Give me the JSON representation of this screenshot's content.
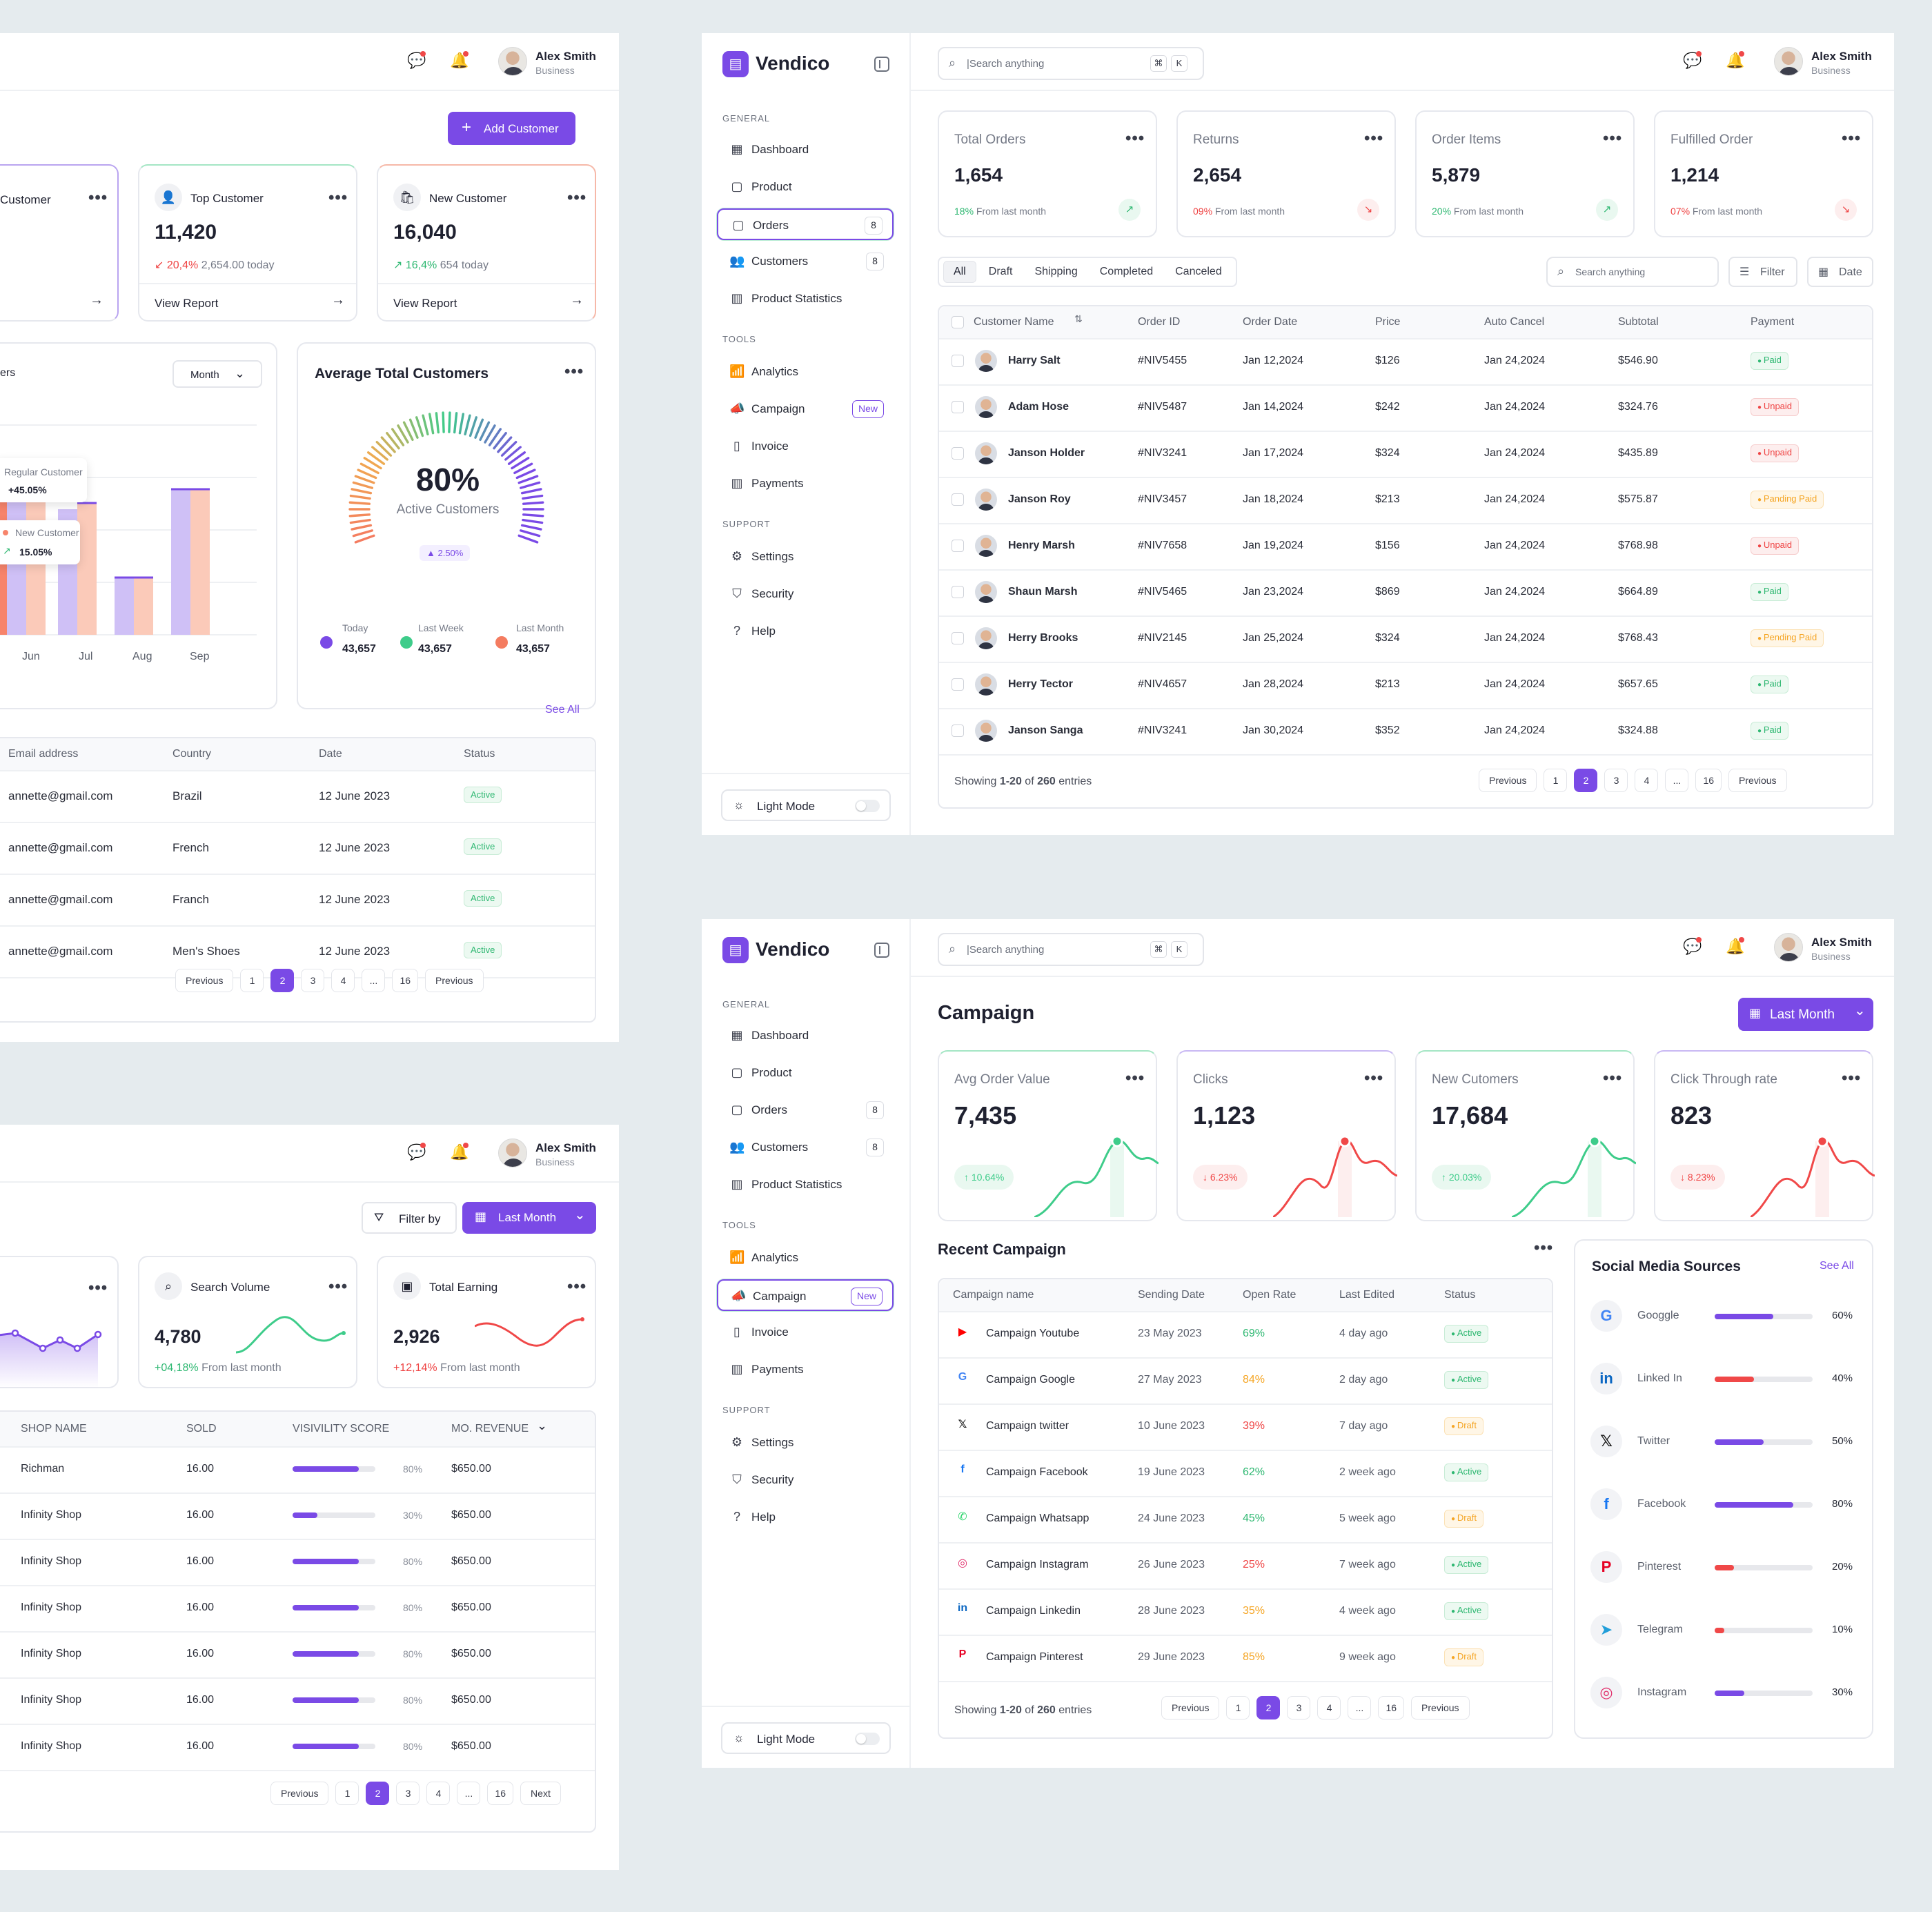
{
  "user": {
    "name": "Alex Smith",
    "role": "Business"
  },
  "brand": "Vendico",
  "search_placeholder": "|Search anything",
  "kbd": [
    "⌘",
    "K"
  ],
  "sidebar": {
    "general": "GENERAL",
    "tools": "TOOLS",
    "support": "SUPPORT",
    "dashboard": "Dashboard",
    "product": "Product",
    "orders": "Orders",
    "orders_count": "8",
    "customers": "Customers",
    "customers_count": "8",
    "product_statistics": "Product Statistics",
    "analytics": "Analytics",
    "campaign": "Campaign",
    "new_badge": "New",
    "invoice": "Invoice",
    "payments": "Payments",
    "settings": "Settings",
    "security": "Security",
    "help": "Help",
    "light_mode": "Light Mode"
  },
  "customers_panel": {
    "add_button": "Add Customer",
    "cards": [
      {
        "title": "Customer"
      },
      {
        "title": "Top Customer",
        "value": "11,420",
        "change": "20,4%",
        "sub": "2,654.00 today",
        "link": "View Report"
      },
      {
        "title": "New Customer",
        "value": "16,040",
        "change": "16,4%",
        "sub": "654 today",
        "link": "View Report"
      }
    ],
    "bar_chart": {
      "title_partial": "ers",
      "filter": "Month",
      "tooltip1": {
        "label": "Regular Customer",
        "value": "+45.05%"
      },
      "tooltip2": {
        "label": "New Customer",
        "value": "15.05%"
      }
    },
    "gauge": {
      "title": "Average Total Customers",
      "percent": "80%",
      "label": "Active Customers",
      "change": "2.50%",
      "legend": [
        {
          "label": "Today",
          "value": "43,657",
          "color": "#7a4ae6"
        },
        {
          "label": "Last Week",
          "value": "43,657",
          "color": "#3ecc8a"
        },
        {
          "label": "Last Month",
          "value": "43,657",
          "color": "#f47c60"
        }
      ]
    },
    "see_all": "See All",
    "table": {
      "headers": [
        "Email address",
        "Country",
        "Date",
        "Status"
      ],
      "rows": [
        [
          "annette@gmail.com",
          "Brazil",
          "12 June 2023",
          "Active"
        ],
        [
          "annette@gmail.com",
          "French",
          "12 June 2023",
          "Active"
        ],
        [
          "annette@gmail.com",
          "Franch",
          "12 June 2023",
          "Active"
        ],
        [
          "annette@gmail.com",
          "Men's Shoes",
          "12 June 2023",
          "Active"
        ]
      ]
    },
    "pager": [
      "Previous",
      "1",
      "2",
      "3",
      "4",
      "...",
      "16",
      "Previous"
    ]
  },
  "shop_panel": {
    "filter": "Filter by",
    "period": "Last Month",
    "cards": [
      {
        "title": "Search Volume",
        "value": "4,780",
        "change": "+04,18%",
        "sub": "From last month"
      },
      {
        "title": "Total Earning",
        "value": "2,926",
        "change": "+12,14%",
        "sub": "From last month"
      }
    ],
    "table": {
      "headers": [
        "SHOP NAME",
        "SOLD",
        "VISIVILITY SCORE",
        "MO. REVENUE"
      ],
      "rows": [
        {
          "shop": "Richman",
          "sold": "16.00",
          "score": 80,
          "score_text": "80%",
          "revenue": "$650.00"
        },
        {
          "shop": "Infinity Shop",
          "sold": "16.00",
          "score": 30,
          "score_text": "30%",
          "revenue": "$650.00"
        },
        {
          "shop": "Infinity Shop",
          "sold": "16.00",
          "score": 80,
          "score_text": "80%",
          "revenue": "$650.00"
        },
        {
          "shop": "Infinity Shop",
          "sold": "16.00",
          "score": 80,
          "score_text": "80%",
          "revenue": "$650.00"
        },
        {
          "shop": "Infinity Shop",
          "sold": "16.00",
          "score": 80,
          "score_text": "80%",
          "revenue": "$650.00"
        },
        {
          "shop": "Infinity Shop",
          "sold": "16.00",
          "score": 80,
          "score_text": "80%",
          "revenue": "$650.00"
        },
        {
          "shop": "Infinity Shop",
          "sold": "16.00",
          "score": 80,
          "score_text": "80%",
          "revenue": "$650.00"
        }
      ]
    },
    "pager": [
      "Previous",
      "1",
      "2",
      "3",
      "4",
      "...",
      "16",
      "Next"
    ]
  },
  "orders_panel": {
    "stats": [
      {
        "title": "Total Orders",
        "value": "1,654",
        "change": "18%",
        "sub": "From last month",
        "trend": "up"
      },
      {
        "title": "Returns",
        "value": "2,654",
        "change": "09%",
        "sub": "From last month",
        "trend": "down"
      },
      {
        "title": "Order Items",
        "value": "5,879",
        "change": "20%",
        "sub": "From last month",
        "trend": "up"
      },
      {
        "title": "Fulfilled Order",
        "value": "1,214",
        "change": "07%",
        "sub": "From last month",
        "trend": "down"
      }
    ],
    "tabs": [
      "All",
      "Draft",
      "Shipping",
      "Completed",
      "Canceled"
    ],
    "search": "Search anything",
    "filter": "Filter",
    "date": "Date",
    "headers": [
      "Customer Name",
      "Order ID",
      "Order Date",
      "Price",
      "Auto Cancel",
      "Subtotal",
      "Payment"
    ],
    "rows": [
      [
        "Harry Salt",
        "#NIV5455",
        "Jan 12,2024",
        "$126",
        "Jan 24,2024",
        "$546.90",
        "Paid"
      ],
      [
        "Adam Hose",
        "#NIV5487",
        "Jan 14,2024",
        "$242",
        "Jan 24,2024",
        "$324.76",
        "Unpaid"
      ],
      [
        "Janson Holder",
        "#NIV3241",
        "Jan 17,2024",
        "$324",
        "Jan 24,2024",
        "$435.89",
        "Unpaid"
      ],
      [
        "Janson Roy",
        "#NIV3457",
        "Jan 18,2024",
        "$213",
        "Jan 24,2024",
        "$575.87",
        "Panding Paid"
      ],
      [
        "Henry Marsh",
        "#NIV7658",
        "Jan 19,2024",
        "$156",
        "Jan 24,2024",
        "$768.98",
        "Unpaid"
      ],
      [
        "Shaun Marsh",
        "#NIV5465",
        "Jan 23,2024",
        "$869",
        "Jan 24,2024",
        "$664.89",
        "Paid"
      ],
      [
        "Herry Brooks",
        "#NIV2145",
        "Jan 25,2024",
        "$324",
        "Jan 24,2024",
        "$768.43",
        "Pending Paid"
      ],
      [
        "Herry Tector",
        "#NIV4657",
        "Jan 28,2024",
        "$213",
        "Jan 24,2024",
        "$657.65",
        "Paid"
      ],
      [
        "Janson Sanga",
        "#NIV3241",
        "Jan 30,2024",
        "$352",
        "Jan 24,2024",
        "$324.88",
        "Paid"
      ]
    ],
    "showing_prefix": "Showing ",
    "showing_range": "1-20",
    "showing_mid": " of ",
    "showing_total": "260",
    "showing_suffix": " entries",
    "pager": [
      "Previous",
      "1",
      "2",
      "3",
      "4",
      "...",
      "16",
      "Previous"
    ]
  },
  "campaign_panel": {
    "title": "Campaign",
    "period": "Last Month",
    "stats": [
      {
        "title": "Avg Order Value",
        "value": "7,435",
        "change": "10.64%",
        "trend": "up"
      },
      {
        "title": "Clicks",
        "value": "1,123",
        "change": "6.23%",
        "trend": "down"
      },
      {
        "title": "New Cutomers",
        "value": "17,684",
        "change": "20.03%",
        "trend": "up"
      },
      {
        "title": "Click Through rate",
        "value": "823",
        "change": "8.23%",
        "trend": "down"
      }
    ],
    "recent_title": "Recent Campaign",
    "headers": [
      "Campaign name",
      "Sending Date",
      "Open Rate",
      "Last Edited",
      "Status"
    ],
    "rows": [
      {
        "icon": "youtube-icon",
        "name": "Campaign Youtube",
        "date": "23 May 2023",
        "rate": "69%",
        "edited": "4 day ago",
        "status": "Active"
      },
      {
        "icon": "google-icon",
        "name": "Campaign Google",
        "date": "27 May 2023",
        "rate": "84%",
        "edited": "2 day ago",
        "status": "Active"
      },
      {
        "icon": "x-icon",
        "name": "Campaign twitter",
        "date": "10 June 2023",
        "rate": "39%",
        "edited": "7 day ago",
        "status": "Draft"
      },
      {
        "icon": "facebook-icon",
        "name": "Campaign Facebook",
        "date": "19 June 2023",
        "rate": "62%",
        "edited": "2 week ago",
        "status": "Active"
      },
      {
        "icon": "whatsapp-icon",
        "name": "Campaign Whatsapp",
        "date": "24 June 2023",
        "rate": "45%",
        "edited": "5 week ago",
        "status": "Draft"
      },
      {
        "icon": "instagram-icon",
        "name": "Campaign Instagram",
        "date": "26 June 2023",
        "rate": "25%",
        "edited": "7 week ago",
        "status": "Active"
      },
      {
        "icon": "linkedin-icon",
        "name": "Campaign Linkedin",
        "date": "28 June 2023",
        "rate": "35%",
        "edited": "4 week ago",
        "status": "Active"
      },
      {
        "icon": "pinterest-icon",
        "name": "Campaign Pinterest",
        "date": "29 June 2023",
        "rate": "85%",
        "edited": "9 week ago",
        "status": "Draft"
      }
    ],
    "showing_prefix": "Showing ",
    "showing_range": "1-20",
    "showing_mid": " of ",
    "showing_total": "260",
    "showing_suffix": " entries",
    "pager": [
      "Previous",
      "1",
      "2",
      "3",
      "4",
      "...",
      "16",
      "Previous"
    ],
    "social": {
      "title": "Social Media Sources",
      "see_all": "See All",
      "items": [
        {
          "icon": "google-icon",
          "name": "Googgle",
          "value": 60,
          "text": "60%",
          "color": "#7a4ae6"
        },
        {
          "icon": "linkedin-icon",
          "name": "Linked In",
          "value": 40,
          "text": "40%",
          "color": "#f04848"
        },
        {
          "icon": "x-icon",
          "name": "Twitter",
          "value": 50,
          "text": "50%",
          "color": "#7a4ae6"
        },
        {
          "icon": "facebook-icon",
          "name": "Facebook",
          "value": 80,
          "text": "80%",
          "color": "#7a4ae6"
        },
        {
          "icon": "pinterest-icon",
          "name": "Pinterest",
          "value": 20,
          "text": "20%",
          "color": "#f04848"
        },
        {
          "icon": "telegram-icon",
          "name": "Telegram",
          "value": 10,
          "text": "10%",
          "color": "#f04848"
        },
        {
          "icon": "instagram-icon",
          "name": "Instagram",
          "value": 30,
          "text": "30%",
          "color": "#7a4ae6"
        }
      ]
    }
  },
  "colors": {
    "accent": "#7a4ae6",
    "green": "#2fb872",
    "red": "#ef4444",
    "orange": "#f5a524",
    "background": "#e5ebee"
  }
}
